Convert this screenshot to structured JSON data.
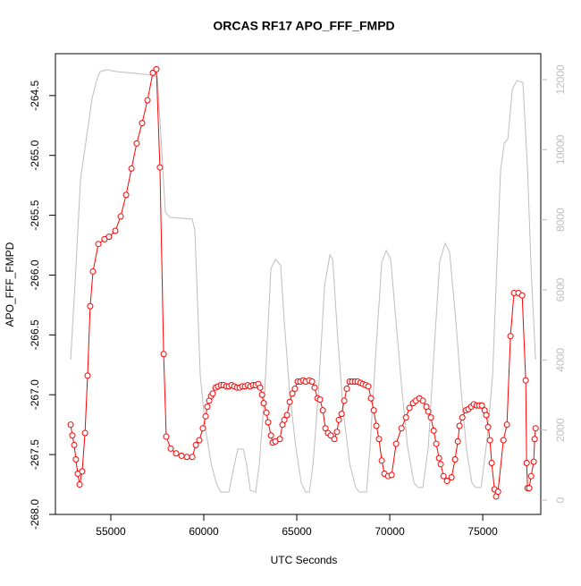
{
  "chart_data": {
    "type": "line",
    "title": "ORCAS RF17 APO_FFF_FMPD",
    "xlabel": "UTC Seconds",
    "ylabel": "APO_FFF_FMPD",
    "xlim": [
      52020,
      78120
    ],
    "ylim": [
      -268.0,
      -264.15
    ],
    "y2lim": [
      -408,
      12740
    ],
    "xticks": [
      55000,
      60000,
      65000,
      70000,
      75000
    ],
    "yticks": [
      -264.5,
      {
        "value": -265.0,
        "label": "-265.0"
      },
      -265.5,
      {
        "value": -266.0,
        "label": "-266.0"
      },
      -266.5,
      {
        "value": -267.0,
        "label": "-267.0"
      },
      -267.5,
      {
        "value": -268.0,
        "label": "-268.0"
      }
    ],
    "y2ticks": [
      0,
      2000,
      4000,
      6000,
      8000,
      10000,
      12000
    ],
    "series": [
      {
        "color": "#bebebe",
        "axis": "y2",
        "x": [
          52840,
          53120,
          53370,
          53650,
          53990,
          54230,
          54420,
          54810,
          55290,
          56250,
          57210,
          57500,
          57690,
          57930,
          58170,
          59380,
          59520,
          59810,
          60100,
          60390,
          60670,
          60910,
          61350,
          61640,
          61830,
          62120,
          62310,
          62500,
          62790,
          62980,
          63270,
          63610,
          63850,
          64130,
          64330,
          64620,
          64950,
          65240,
          65480,
          65670,
          65870,
          66160,
          66490,
          66780,
          66930,
          67210,
          67500,
          67840,
          68170,
          68370,
          68750,
          68940,
          69230,
          69570,
          69810,
          70050,
          70340,
          70630,
          70960,
          71300,
          71540,
          71780,
          72070,
          72360,
          72690,
          72980,
          73220,
          73560,
          73850,
          74140,
          74420,
          74620,
          74910,
          75240,
          75530,
          75770,
          75960,
          76160,
          76350,
          76590,
          76830,
          77160,
          77410,
          77600,
          77840
        ],
        "values": [
          4010,
          6610,
          9170,
          10190,
          11460,
          11970,
          12230,
          12280,
          12230,
          12180,
          12130,
          12080,
          10440,
          8220,
          8070,
          8020,
          7690,
          3550,
          2020,
          1050,
          490,
          230,
          230,
          1000,
          1460,
          1460,
          1000,
          280,
          230,
          1000,
          3040,
          6610,
          6870,
          6710,
          5080,
          3040,
          1510,
          490,
          230,
          230,
          1000,
          3040,
          6100,
          7000,
          6870,
          4570,
          2530,
          1050,
          360,
          230,
          230,
          1510,
          4060,
          6790,
          7120,
          6870,
          5080,
          3290,
          1510,
          490,
          360,
          360,
          1510,
          4060,
          6820,
          7330,
          7070,
          5080,
          3040,
          1380,
          490,
          360,
          360,
          1760,
          3550,
          6870,
          9420,
          10190,
          10310,
          11720,
          11970,
          11920,
          9420,
          6610,
          4010
        ]
      },
      {
        "color": "#ff0000",
        "axis": "y",
        "x": [
          52840,
          52930,
          53030,
          53120,
          53220,
          53320,
          53460,
          53610,
          53750,
          53890,
          54040,
          54330,
          54660,
          54900,
          55240,
          55530,
          55820,
          56110,
          56390,
          56680,
          56970,
          57260,
          57450,
          57640,
          57840,
          57980,
          58220,
          58510,
          58800,
          59090,
          59380,
          59570,
          59760,
          59950,
          60100,
          60190,
          60290,
          60390,
          60480,
          60630,
          60770,
          60920,
          61060,
          61210,
          61350,
          61490,
          61640,
          61780,
          61930,
          62070,
          62220,
          62360,
          62500,
          62650,
          62790,
          62930,
          63030,
          63130,
          63220,
          63370,
          63460,
          63610,
          63700,
          63850,
          64090,
          64230,
          64330,
          64470,
          64620,
          64760,
          64900,
          65050,
          65190,
          65340,
          65480,
          65670,
          65820,
          65960,
          66110,
          66250,
          66400,
          66540,
          66680,
          66830,
          67020,
          67160,
          67260,
          67410,
          67550,
          67690,
          67840,
          67980,
          68130,
          68270,
          68420,
          68560,
          68700,
          68850,
          68990,
          69140,
          69280,
          69420,
          69570,
          69710,
          69910,
          70100,
          70340,
          70630,
          70870,
          71060,
          71250,
          71400,
          71590,
          71780,
          71970,
          72070,
          72210,
          72360,
          72500,
          72650,
          72740,
          72890,
          73080,
          73320,
          73510,
          73660,
          73750,
          73900,
          74090,
          74230,
          74380,
          74520,
          74670,
          74810,
          74950,
          75100,
          75190,
          75290,
          75390,
          75480,
          75630,
          75720,
          75820,
          76110,
          76300,
          76490,
          76680,
          76920,
          77120,
          77310,
          77360,
          77410,
          77500,
          77600,
          77740,
          77790,
          77840
        ],
        "values": [
          -267.25,
          -267.34,
          -267.42,
          -267.54,
          -267.66,
          -267.75,
          -267.64,
          -267.32,
          -266.84,
          -266.26,
          -265.97,
          -265.74,
          -265.7,
          -265.68,
          -265.63,
          -265.51,
          -265.33,
          -265.11,
          -264.9,
          -264.73,
          -264.54,
          -264.31,
          -264.28,
          -265.1,
          -266.66,
          -267.35,
          -267.45,
          -267.49,
          -267.51,
          -267.52,
          -267.52,
          -267.42,
          -267.38,
          -267.28,
          -267.18,
          -267.1,
          -267.05,
          -267.01,
          -266.99,
          -266.94,
          -266.93,
          -266.92,
          -266.92,
          -266.93,
          -266.93,
          -266.92,
          -266.93,
          -266.94,
          -266.94,
          -266.93,
          -266.93,
          -266.92,
          -266.93,
          -266.92,
          -266.92,
          -266.91,
          -266.94,
          -267.0,
          -267.07,
          -267.15,
          -267.23,
          -267.34,
          -267.4,
          -267.39,
          -267.37,
          -267.25,
          -267.21,
          -267.17,
          -267.06,
          -266.99,
          -266.95,
          -266.89,
          -266.89,
          -266.88,
          -266.89,
          -266.88,
          -266.89,
          -266.94,
          -267.03,
          -267.04,
          -267.13,
          -267.28,
          -267.32,
          -267.34,
          -267.37,
          -267.31,
          -267.21,
          -267.16,
          -267.05,
          -266.95,
          -266.89,
          -266.89,
          -266.89,
          -266.89,
          -266.9,
          -266.91,
          -266.92,
          -266.93,
          -267.03,
          -267.13,
          -267.26,
          -267.37,
          -267.55,
          -267.66,
          -267.68,
          -267.67,
          -267.41,
          -267.28,
          -267.19,
          -267.11,
          -267.07,
          -267.05,
          -267.03,
          -267.05,
          -267.1,
          -267.14,
          -267.19,
          -267.3,
          -267.41,
          -267.53,
          -267.58,
          -267.68,
          -267.72,
          -267.69,
          -267.54,
          -267.39,
          -267.26,
          -267.19,
          -267.13,
          -267.12,
          -267.1,
          -267.08,
          -267.09,
          -267.09,
          -267.09,
          -267.13,
          -267.17,
          -267.27,
          -267.38,
          -267.57,
          -267.79,
          -267.85,
          -267.81,
          -267.38,
          -267.25,
          -266.51,
          -266.15,
          -266.15,
          -266.17,
          -266.88,
          -267.57,
          -267.78,
          -267.78,
          -267.68,
          -267.56,
          -267.37,
          -267.28
        ]
      }
    ]
  }
}
